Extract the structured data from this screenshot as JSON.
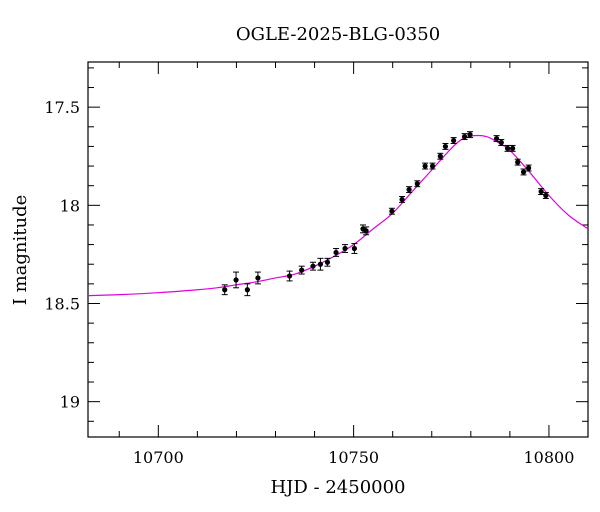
{
  "chart_data": {
    "type": "scatter",
    "title": "OGLE-2025-BLG-0350",
    "xlabel": "HJD - 2450000",
    "ylabel": "I magnitude",
    "xlim": [
      10682,
      10810
    ],
    "ylim": [
      19.18,
      17.27
    ],
    "y_inverted": true,
    "grid": false,
    "x_ticks": [
      10700,
      10750,
      10800
    ],
    "x_tick_labels": [
      "10700",
      "10750",
      "10800"
    ],
    "y_ticks": [
      17.5,
      18,
      18.5,
      19
    ],
    "y_tick_labels": [
      "17.5",
      "18",
      "18.5",
      "19"
    ],
    "colors": {
      "model": "#e000e0",
      "points": "#000000"
    },
    "series": [
      {
        "kind": "points",
        "points": [
          {
            "x": 10717.0,
            "y": 18.43,
            "err": 0.025
          },
          {
            "x": 10719.9,
            "y": 18.38,
            "err": 0.04
          },
          {
            "x": 10722.8,
            "y": 18.43,
            "err": 0.03
          },
          {
            "x": 10725.5,
            "y": 18.37,
            "err": 0.03
          },
          {
            "x": 10733.6,
            "y": 18.36,
            "err": 0.025
          },
          {
            "x": 10736.7,
            "y": 18.33,
            "err": 0.02
          },
          {
            "x": 10739.6,
            "y": 18.31,
            "err": 0.02
          },
          {
            "x": 10741.5,
            "y": 18.3,
            "err": 0.03
          },
          {
            "x": 10743.3,
            "y": 18.29,
            "err": 0.02
          },
          {
            "x": 10745.5,
            "y": 18.24,
            "err": 0.02
          },
          {
            "x": 10747.8,
            "y": 18.22,
            "err": 0.02
          },
          {
            "x": 10750.2,
            "y": 18.22,
            "err": 0.025
          },
          {
            "x": 10752.4,
            "y": 18.12,
            "err": 0.02
          },
          {
            "x": 10753.2,
            "y": 18.13,
            "err": 0.02
          },
          {
            "x": 10759.8,
            "y": 18.03,
            "err": 0.015
          },
          {
            "x": 10762.4,
            "y": 17.97,
            "err": 0.015
          },
          {
            "x": 10764.2,
            "y": 17.92,
            "err": 0.015
          },
          {
            "x": 10766.3,
            "y": 17.89,
            "err": 0.015
          },
          {
            "x": 10768.3,
            "y": 17.8,
            "err": 0.015
          },
          {
            "x": 10770.2,
            "y": 17.8,
            "err": 0.015
          },
          {
            "x": 10772.2,
            "y": 17.75,
            "err": 0.015
          },
          {
            "x": 10773.5,
            "y": 17.7,
            "err": 0.015
          },
          {
            "x": 10775.6,
            "y": 17.67,
            "err": 0.015
          },
          {
            "x": 10778.4,
            "y": 17.65,
            "err": 0.015
          },
          {
            "x": 10779.8,
            "y": 17.64,
            "err": 0.015
          },
          {
            "x": 10786.6,
            "y": 17.66,
            "err": 0.015
          },
          {
            "x": 10787.8,
            "y": 17.68,
            "err": 0.015
          },
          {
            "x": 10789.4,
            "y": 17.71,
            "err": 0.015
          },
          {
            "x": 10790.7,
            "y": 17.71,
            "err": 0.015
          },
          {
            "x": 10792.0,
            "y": 17.78,
            "err": 0.015
          },
          {
            "x": 10793.5,
            "y": 17.83,
            "err": 0.015
          },
          {
            "x": 10794.8,
            "y": 17.81,
            "err": 0.015
          },
          {
            "x": 10798.0,
            "y": 17.93,
            "err": 0.015
          },
          {
            "x": 10799.2,
            "y": 17.95,
            "err": 0.015
          }
        ]
      },
      {
        "kind": "model-curve",
        "points": [
          {
            "x": 10682,
            "y": 18.46
          },
          {
            "x": 10690,
            "y": 18.455
          },
          {
            "x": 10700,
            "y": 18.445
          },
          {
            "x": 10710,
            "y": 18.43
          },
          {
            "x": 10715,
            "y": 18.42
          },
          {
            "x": 10720,
            "y": 18.405
          },
          {
            "x": 10725,
            "y": 18.39
          },
          {
            "x": 10730,
            "y": 18.37
          },
          {
            "x": 10735,
            "y": 18.35
          },
          {
            "x": 10740,
            "y": 18.31
          },
          {
            "x": 10745,
            "y": 18.26
          },
          {
            "x": 10750,
            "y": 18.2
          },
          {
            "x": 10755,
            "y": 18.12
          },
          {
            "x": 10760,
            "y": 18.04
          },
          {
            "x": 10765,
            "y": 17.93
          },
          {
            "x": 10770,
            "y": 17.82
          },
          {
            "x": 10775,
            "y": 17.71
          },
          {
            "x": 10778,
            "y": 17.66
          },
          {
            "x": 10781,
            "y": 17.645
          },
          {
            "x": 10784,
            "y": 17.65
          },
          {
            "x": 10787,
            "y": 17.68
          },
          {
            "x": 10790,
            "y": 17.72
          },
          {
            "x": 10795,
            "y": 17.83
          },
          {
            "x": 10800,
            "y": 17.95
          },
          {
            "x": 10805,
            "y": 18.05
          },
          {
            "x": 10810,
            "y": 18.12
          }
        ]
      }
    ]
  }
}
